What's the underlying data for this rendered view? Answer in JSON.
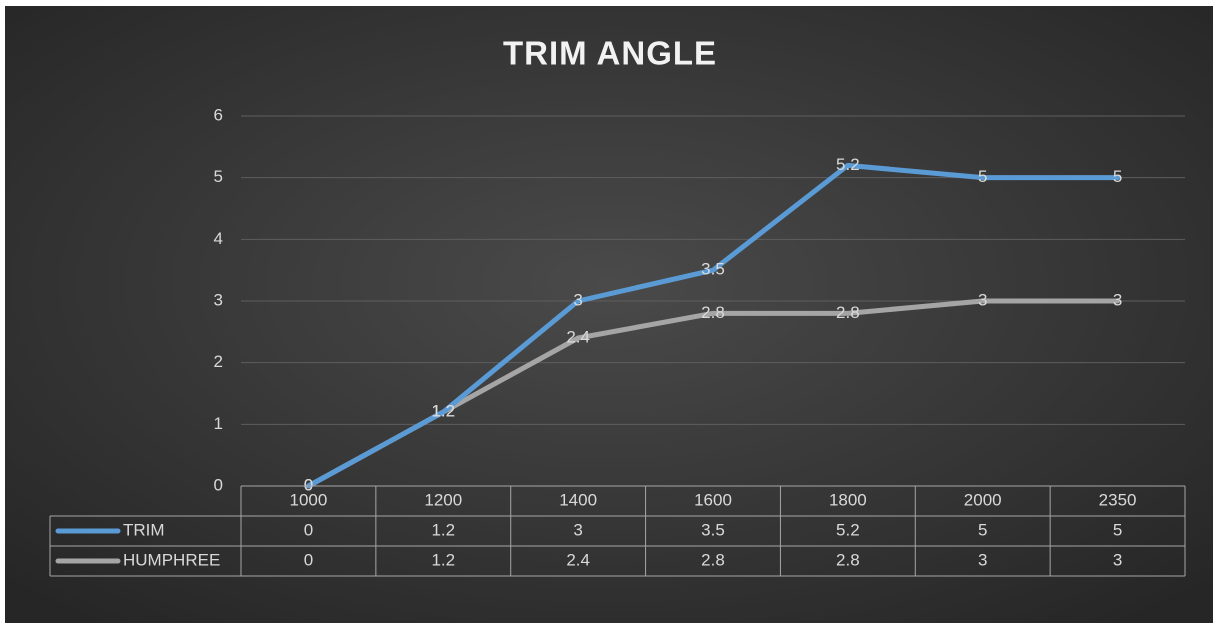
{
  "chart_data": {
    "type": "line",
    "title": "TRIM ANGLE",
    "categories": [
      "1000",
      "1200",
      "1400",
      "1600",
      "1800",
      "2000",
      "2350"
    ],
    "series": [
      {
        "name": "TRIM",
        "color": "#5b9bd5",
        "values": [
          0,
          1.2,
          3,
          3.5,
          5.2,
          5,
          5
        ]
      },
      {
        "name": "HUMPHREE",
        "color": "#a5a5a5",
        "values": [
          0,
          1.2,
          2.4,
          2.8,
          2.8,
          3,
          3
        ]
      }
    ],
    "ylim": [
      0,
      6
    ],
    "yticks": [
      0,
      1,
      2,
      3,
      4,
      5,
      6
    ],
    "grid": true,
    "data_labels": true,
    "data_table": true
  }
}
